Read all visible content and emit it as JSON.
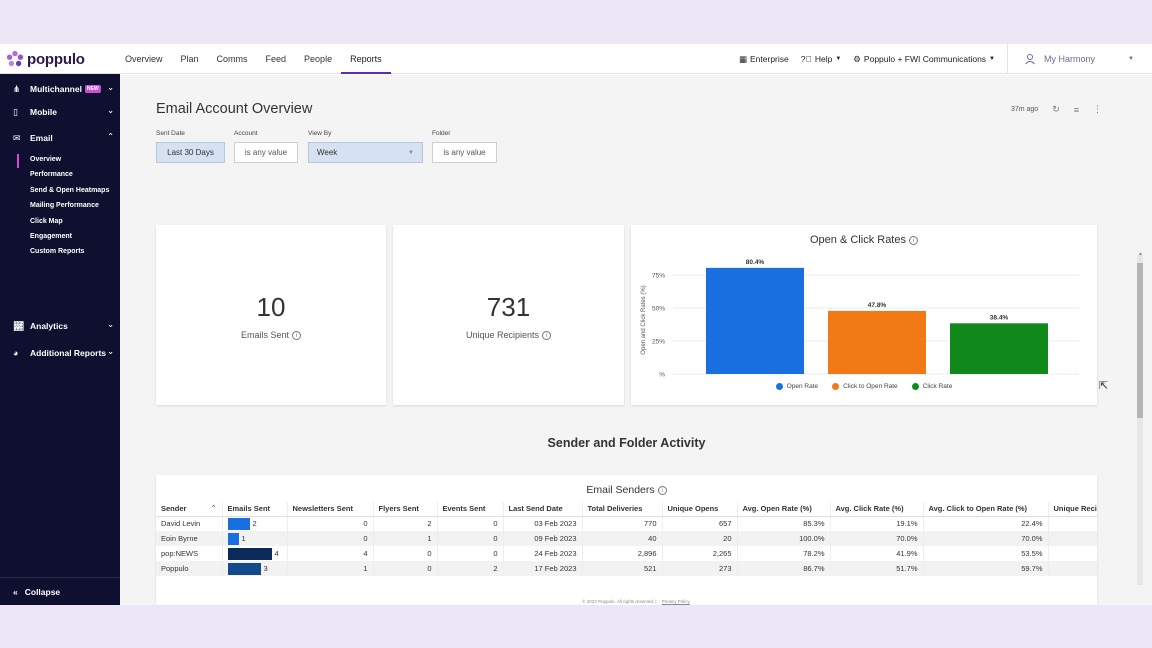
{
  "brand": {
    "name": "poppulo"
  },
  "topnav": [
    "Overview",
    "Plan",
    "Comms",
    "Feed",
    "People",
    "Reports"
  ],
  "topnav_active": "Reports",
  "topright": {
    "enterprise": "Enterprise",
    "help": "Help",
    "org": "Poppulo + FWI Communications",
    "user": "My Harmony"
  },
  "sidebar": {
    "multichannel": "Multichannel",
    "new_badge": "NEW",
    "mobile": "Mobile",
    "email": "Email",
    "email_items": [
      "Overview",
      "Performance",
      "Send & Open Heatmaps",
      "Mailing Performance",
      "Click Map",
      "Engagement",
      "Custom Reports"
    ],
    "analytics": "Analytics",
    "additional": "Additional Reports",
    "collapse": "Collapse"
  },
  "page": {
    "title": "Email Account Overview",
    "updated": "37m ago"
  },
  "filters": {
    "sent_date_label": "Sent Date",
    "sent_date_value": "Last 30 Days",
    "account_label": "Account",
    "account_value": "is any value",
    "view_by_label": "View By",
    "view_by_value": "Week",
    "folder_label": "Folder",
    "folder_value": "is any value"
  },
  "kpis": {
    "emails_sent_value": "10",
    "emails_sent_label": "Emails Sent",
    "recipients_value": "731",
    "recipients_label": "Unique Recipients"
  },
  "chart_data": {
    "type": "bar",
    "title": "Open & Click Rates",
    "ylabel": "Open and Click Rates (%)",
    "xlabel": "",
    "ylim": [
      0,
      90
    ],
    "yticks": [
      "75%",
      "50%",
      "25%",
      "%"
    ],
    "yticks_values": [
      75,
      50,
      25,
      0
    ],
    "series": [
      {
        "name": "Open Rate",
        "value": 80.4,
        "label": "80.4%",
        "color": "#1a6fe0"
      },
      {
        "name": "Click to Open Rate",
        "value": 47.8,
        "label": "47.8%",
        "color": "#f27a16"
      },
      {
        "name": "Click Rate",
        "value": 38.4,
        "label": "38.4%",
        "color": "#10891a"
      }
    ],
    "grid": true,
    "legend": "bottom"
  },
  "section_title": "Sender and Folder Activity",
  "table": {
    "title": "Email Senders",
    "columns": [
      "Sender",
      "Emails Sent",
      "Newsletters Sent",
      "Flyers Sent",
      "Events Sent",
      "Last Send Date",
      "Total Deliveries",
      "Unique Opens",
      "Avg. Open Rate (%)",
      "Avg. Click Rate (%)",
      "Avg. Click to Open Rate (%)",
      "Unique Reci"
    ],
    "rows": [
      {
        "sender": "David Levin",
        "emails": 2,
        "newsletters": "0",
        "flyers": "2",
        "events": "0",
        "last": "03 Feb 2023",
        "deliveries": "770",
        "opens": "657",
        "open_rate": "85.3%",
        "click_rate": "19.1%",
        "cto_rate": "22.4%",
        "bar_color": "#1a6fe0"
      },
      {
        "sender": "Eoin Byrne",
        "emails": 1,
        "newsletters": "0",
        "flyers": "1",
        "events": "0",
        "last": "09 Feb 2023",
        "deliveries": "40",
        "opens": "20",
        "open_rate": "100.0%",
        "click_rate": "70.0%",
        "cto_rate": "70.0%",
        "bar_color": "#1a6fe0"
      },
      {
        "sender": "pop:NEWS",
        "emails": 4,
        "newsletters": "4",
        "flyers": "0",
        "events": "0",
        "last": "24 Feb 2023",
        "deliveries": "2,896",
        "opens": "2,265",
        "open_rate": "78.2%",
        "click_rate": "41.9%",
        "cto_rate": "53.5%",
        "bar_color": "#0b2a5a"
      },
      {
        "sender": "Poppulo",
        "emails": 3,
        "newsletters": "1",
        "flyers": "0",
        "events": "2",
        "last": "17 Feb 2023",
        "deliveries": "521",
        "opens": "273",
        "open_rate": "86.7%",
        "click_rate": "51.7%",
        "cto_rate": "59.7%",
        "bar_color": "#144a8c"
      }
    ]
  },
  "footer": {
    "copyright": "© 2023 Poppulo. All rights reserved.",
    "privacy": "Privacy Policy"
  }
}
